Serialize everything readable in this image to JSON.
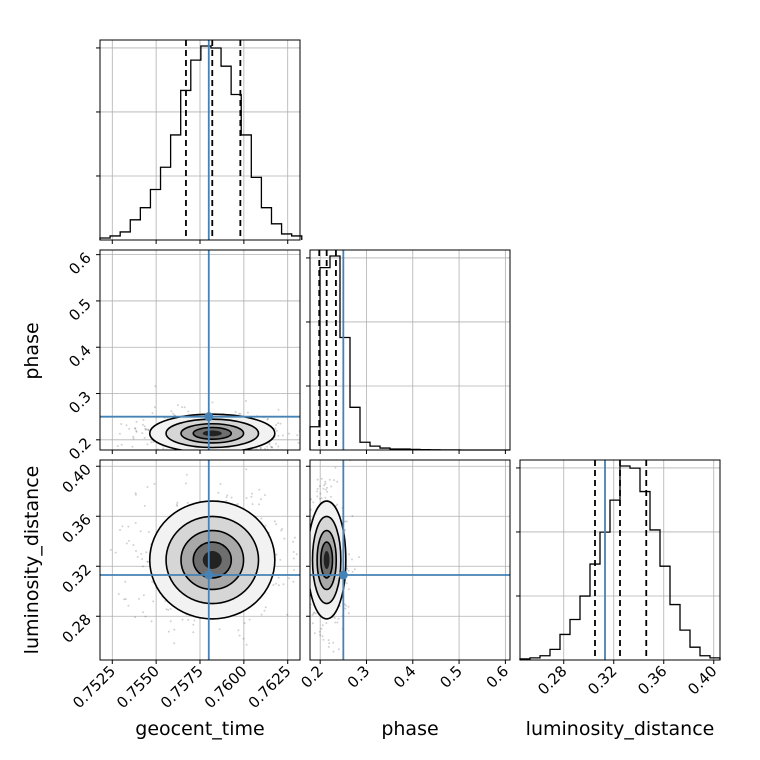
{
  "chart_data": {
    "type": "corner",
    "parameters": [
      "geocent_time",
      "phase",
      "luminosity_distance"
    ],
    "truths": {
      "geocent_time": 0.758,
      "phase": 0.25,
      "luminosity_distance": 0.313
    },
    "quantiles": {
      "geocent_time": [
        0.7567,
        0.7582,
        0.7598
      ],
      "phase": [
        0.198,
        0.214,
        0.234
      ],
      "luminosity_distance": [
        0.305,
        0.325,
        0.346
      ]
    },
    "ranges": {
      "geocent_time": [
        0.7518,
        0.7632
      ],
      "phase": [
        0.178,
        0.61
      ],
      "luminosity_distance": [
        0.245,
        0.405
      ]
    },
    "ticks": {
      "geocent_time": [
        "0.7525",
        "0.7550",
        "0.7575",
        "0.7600",
        "0.7625"
      ],
      "phase": [
        "0.2",
        "0.3",
        "0.4",
        "0.5",
        "0.6"
      ],
      "phase_y": [
        "0.2",
        "0.3",
        "0.4",
        "0.5",
        "0.6"
      ],
      "luminosity_distance": [
        "0.28",
        "0.32",
        "0.36",
        "0.40"
      ],
      "luminosity_distance_y": [
        "0.28",
        "0.32",
        "0.36",
        "0.40"
      ]
    },
    "histograms": {
      "geocent_time": {
        "edges_start": 0.7518,
        "bin_width": 0.000575,
        "counts": [
          1,
          2,
          4,
          10,
          16,
          25,
          36,
          52,
          74,
          89,
          96,
          95,
          86,
          72,
          52,
          31,
          16,
          8,
          3,
          2
        ]
      },
      "phase": {
        "edges_start": 0.178,
        "bin_width": 0.0216,
        "counts": [
          12,
          94,
          100,
          58,
          22,
          4,
          2,
          1,
          0.5,
          0.5,
          0.3,
          0.2,
          0.1,
          0.05,
          0.05,
          0,
          0,
          0,
          0,
          0
        ]
      },
      "luminosity_distance": {
        "edges_start": 0.245,
        "bin_width": 0.008,
        "counts": [
          0.5,
          1,
          2,
          5,
          12,
          19,
          30,
          45,
          60,
          75,
          91,
          90,
          79,
          61,
          44,
          26,
          14,
          6,
          2,
          1
        ]
      }
    },
    "grid": true,
    "truth_color": "#4682b4",
    "xlabel_ticks_rotated": 45
  }
}
